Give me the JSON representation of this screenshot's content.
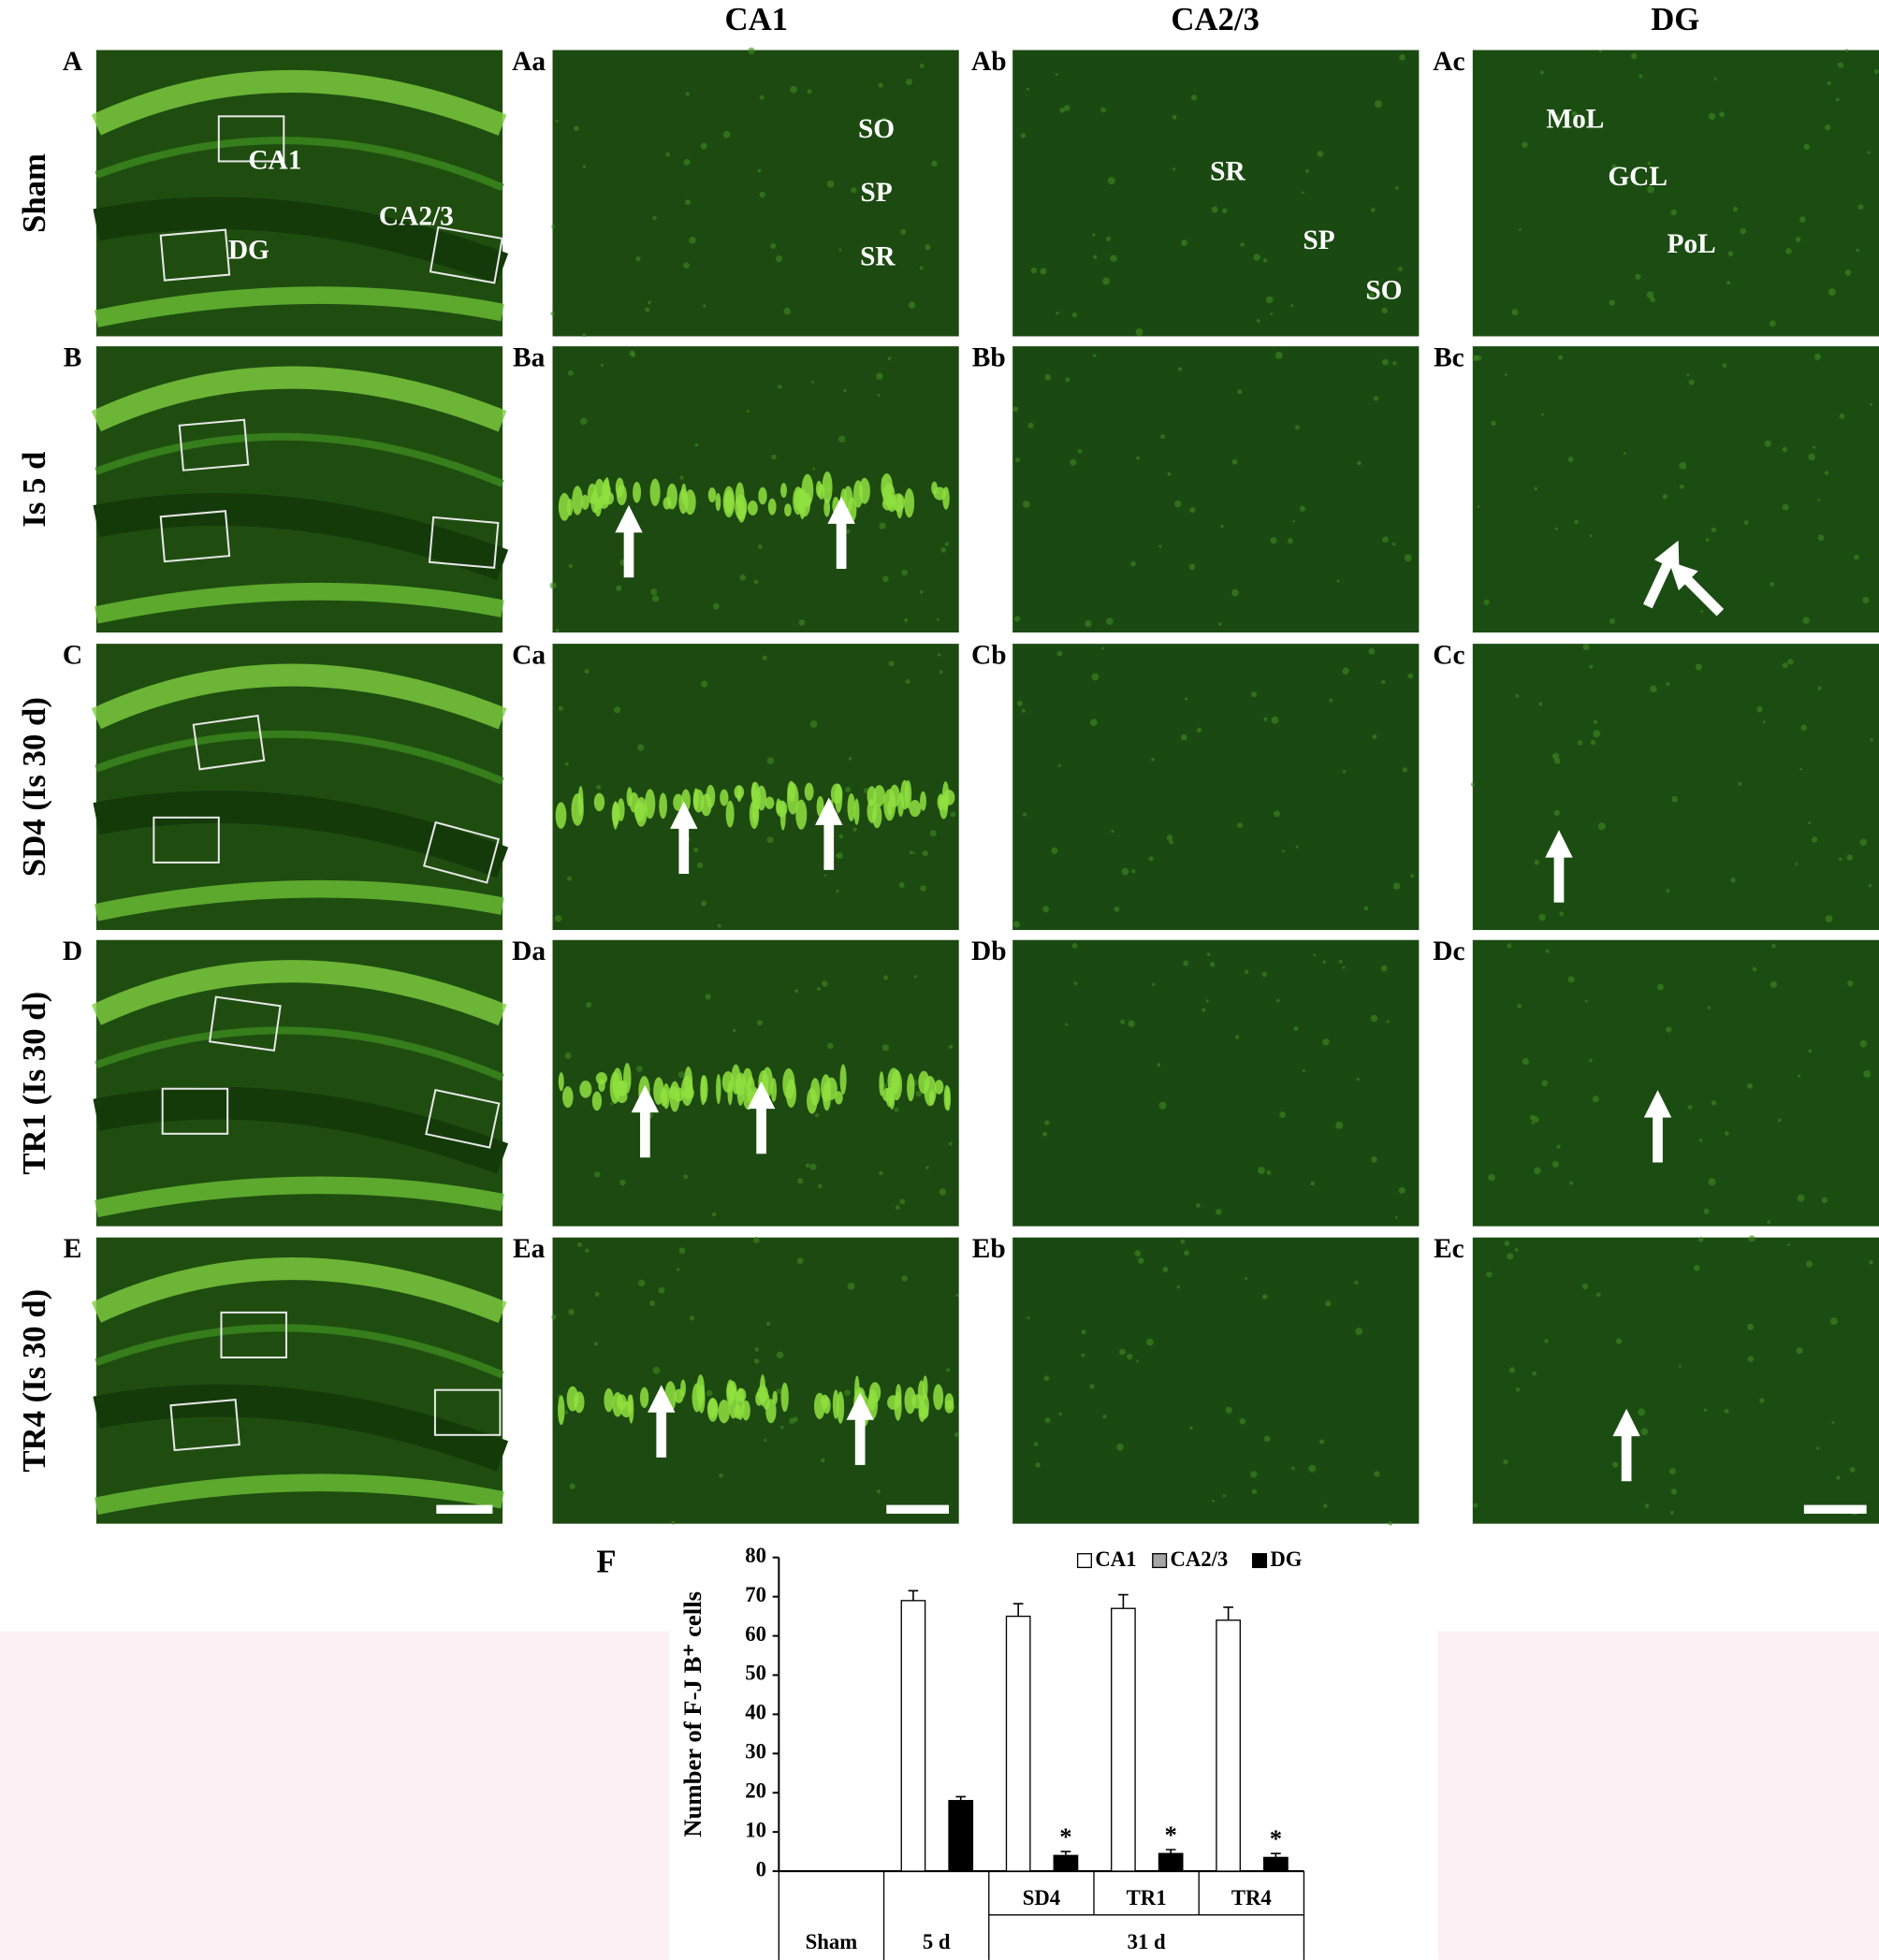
{
  "column_headers": [
    "CA1",
    "CA2/3",
    "DG"
  ],
  "rows": [
    {
      "label": "Sham",
      "panels": [
        "A",
        "Aa",
        "Ab",
        "Ac"
      ],
      "region_labels": [
        [
          "CA1",
          "CA2/3",
          "DG"
        ],
        [
          "SO",
          "SP",
          "SR"
        ],
        [
          "SR",
          "SP",
          "SO"
        ],
        [
          "MoL",
          "GCL",
          "PoL"
        ]
      ]
    },
    {
      "label": "Is 5 d",
      "panels": [
        "B",
        "Ba",
        "Bb",
        "Bc"
      ]
    },
    {
      "label": "SD4 (Is 30 d)",
      "panels": [
        "C",
        "Ca",
        "Cb",
        "Cc"
      ]
    },
    {
      "label": "TR1 (Is 30 d)",
      "panels": [
        "D",
        "Da",
        "Db",
        "Dc"
      ]
    },
    {
      "label": "TR4 (Is 30 d)",
      "panels": [
        "E",
        "Ea",
        "Eb",
        "Ec"
      ]
    }
  ],
  "chart_data": {
    "type": "bar",
    "panel_label": "F",
    "y_label": "Number of F-J B⁺ cells",
    "categories": [
      "Sham",
      "5 d",
      "SD4",
      "TR1",
      "TR4"
    ],
    "category_group": [
      null,
      null,
      "31 d",
      "31 d",
      "31 d"
    ],
    "series": [
      {
        "name": "CA1",
        "color": "#ffffff",
        "values": [
          0,
          69,
          65,
          67,
          64
        ],
        "errors": [
          null,
          2.5,
          3.2,
          3.5,
          3.3
        ]
      },
      {
        "name": "CA2/3",
        "color": "#a6a6a6",
        "values": [
          0,
          0,
          0,
          0,
          0
        ]
      },
      {
        "name": "DG",
        "color": "#000000",
        "values": [
          0,
          18,
          4,
          4.5,
          3.5
        ],
        "errors": [
          null,
          1,
          1,
          1,
          1
        ],
        "markers": [
          null,
          null,
          "*",
          "*",
          "*"
        ]
      }
    ],
    "ylim": [
      0,
      80
    ],
    "yticks": [
      0,
      10,
      20,
      30,
      40,
      50,
      60,
      70,
      80
    ]
  }
}
